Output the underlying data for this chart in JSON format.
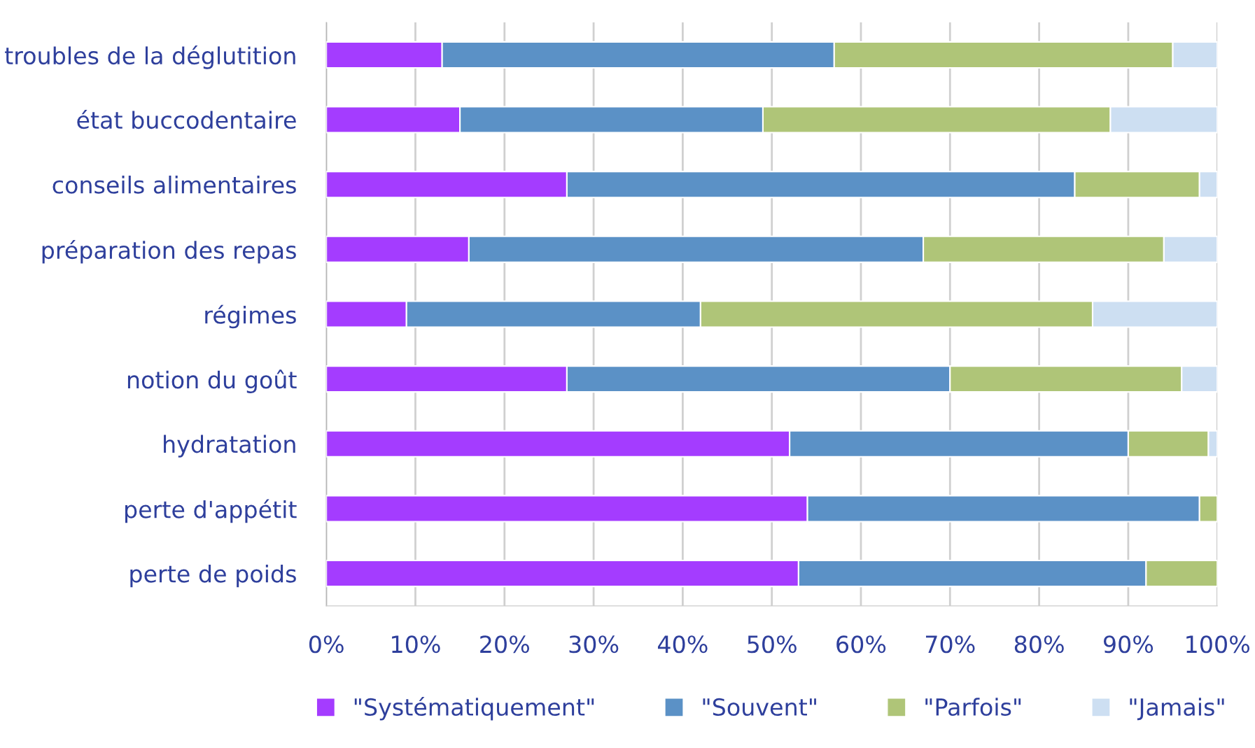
{
  "chart_data": {
    "type": "bar",
    "orientation": "horizontal",
    "stacked": true,
    "categories": [
      "troubles de la déglutition",
      "état buccodentaire",
      "conseils alimentaires",
      "préparation des repas",
      "régimes",
      "notion du goût",
      "hydratation",
      "perte d'appétit",
      "perte de poids"
    ],
    "series": [
      {
        "name": "\"Systématiquement\"",
        "color": "#a43cff",
        "values": [
          13,
          15,
          27,
          16,
          9,
          27,
          52,
          54,
          53
        ]
      },
      {
        "name": "\"Souvent\"",
        "color": "#5b91c6",
        "values": [
          44,
          34,
          57,
          51,
          33,
          43,
          38,
          44,
          39
        ]
      },
      {
        "name": "\"Parfois\"",
        "color": "#afc578",
        "values": [
          38,
          39,
          14,
          27,
          44,
          26,
          9,
          2,
          8
        ]
      },
      {
        "name": "\"Jamais\"",
        "color": "#cddff2",
        "values": [
          5,
          12,
          2,
          6,
          14,
          4,
          1,
          null,
          null
        ]
      }
    ],
    "xlim": [
      0,
      100
    ],
    "xticks": [
      {
        "value": 0,
        "label": "0%"
      },
      {
        "value": 10,
        "label": "10%"
      },
      {
        "value": 20,
        "label": "20%"
      },
      {
        "value": 30,
        "label": "30%"
      },
      {
        "value": 40,
        "label": "40%"
      },
      {
        "value": 50,
        "label": "50%"
      },
      {
        "value": 60,
        "label": "60%"
      },
      {
        "value": 70,
        "label": "70%"
      },
      {
        "value": 80,
        "label": "80%"
      },
      {
        "value": 90,
        "label": "90%"
      },
      {
        "value": 100,
        "label": "100%"
      }
    ],
    "grid": "x",
    "legend": "bottom"
  }
}
